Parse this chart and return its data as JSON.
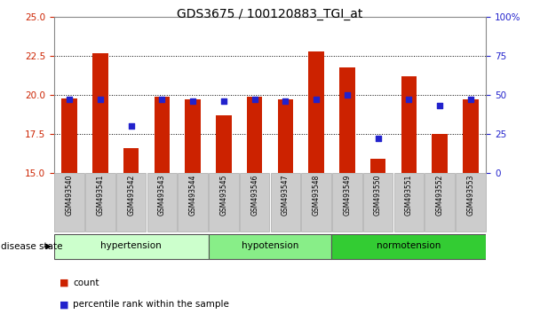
{
  "title": "GDS3675 / 100120883_TGI_at",
  "samples": [
    "GSM493540",
    "GSM493541",
    "GSM493542",
    "GSM493543",
    "GSM493544",
    "GSM493545",
    "GSM493546",
    "GSM493547",
    "GSM493548",
    "GSM493549",
    "GSM493550",
    "GSM493551",
    "GSM493552",
    "GSM493553"
  ],
  "bar_tops": [
    19.8,
    22.7,
    16.6,
    19.9,
    19.7,
    18.7,
    19.9,
    19.7,
    22.8,
    21.8,
    15.9,
    21.2,
    17.5,
    19.7
  ],
  "bar_base": 15.0,
  "blue_values": [
    47,
    47,
    30,
    47,
    46,
    46,
    47,
    46,
    47,
    50,
    22,
    47,
    43,
    47
  ],
  "bar_color": "#cc2200",
  "blue_color": "#2222cc",
  "ylim_left": [
    15,
    25
  ],
  "ylim_right": [
    0,
    100
  ],
  "yticks_left": [
    15,
    17.5,
    20,
    22.5,
    25
  ],
  "yticks_right": [
    0,
    25,
    50,
    75,
    100
  ],
  "ytick_labels_right": [
    "0",
    "25",
    "50",
    "75",
    "100%"
  ],
  "groups": [
    {
      "label": "hypertension",
      "start": 0,
      "end": 5,
      "color": "#ccffcc"
    },
    {
      "label": "hypotension",
      "start": 5,
      "end": 9,
      "color": "#88ee88"
    },
    {
      "label": "normotension",
      "start": 9,
      "end": 14,
      "color": "#33cc33"
    }
  ],
  "disease_state_label": "disease state",
  "legend_items": [
    {
      "color": "#cc2200",
      "label": "count"
    },
    {
      "color": "#2222cc",
      "label": "percentile rank within the sample"
    }
  ],
  "title_fontsize": 10,
  "tick_label_color_left": "#cc2200",
  "tick_label_color_right": "#2222cc",
  "bar_width": 0.5,
  "blue_marker_size": 4
}
